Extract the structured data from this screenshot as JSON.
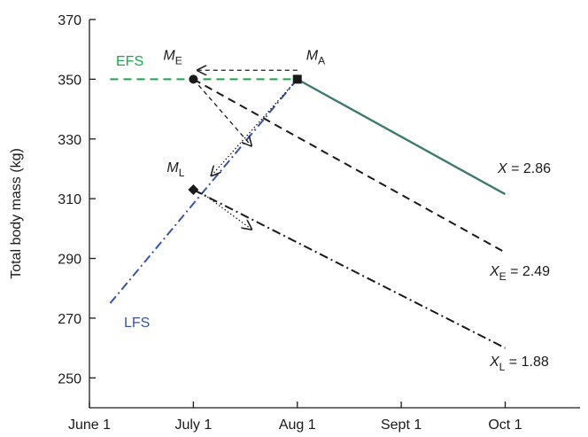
{
  "chart_data": {
    "type": "line",
    "title": "",
    "xlabel": "",
    "ylabel": "Total body mass (kg)",
    "x_ticks": [
      "June 1",
      "July 1",
      "Aug 1",
      "Sept 1",
      "Oct 1"
    ],
    "y_ticks": [
      250,
      270,
      290,
      310,
      330,
      350,
      370
    ],
    "ylim": [
      240,
      370
    ],
    "xlim": [
      0,
      4.72
    ],
    "grid": false,
    "colors": {
      "efs": "#18a84a",
      "lfs": "#3a53a4",
      "black": "#1a1a1a",
      "overlap": "#3f7a6e"
    },
    "series": [
      {
        "name": "EFS",
        "style": "dashed",
        "color": "#18a84a",
        "x": [
          0.2,
          2
        ],
        "y": [
          350,
          350
        ]
      },
      {
        "name": "LFS",
        "style": "dash-dot",
        "color": "#3a53a4",
        "x": [
          0.2,
          2
        ],
        "y": [
          275,
          350
        ]
      },
      {
        "style": "solid",
        "color": "#3f7a6e",
        "x": [
          2,
          4
        ],
        "y": [
          350,
          311.5
        ]
      },
      {
        "style": "dashed",
        "color": "#1a1a1a",
        "x": [
          1,
          4
        ],
        "y": [
          350,
          292
        ]
      },
      {
        "style": "dash-dot",
        "color": "#1a1a1a",
        "x": [
          1,
          4
        ],
        "y": [
          313,
          260
        ]
      }
    ],
    "points": [
      {
        "label": "M",
        "sub": "E",
        "x": 1,
        "y": 350,
        "marker": "circle"
      },
      {
        "label": "M",
        "sub": "A",
        "x": 2,
        "y": 350,
        "marker": "square"
      },
      {
        "label": "M",
        "sub": "L",
        "x": 1,
        "y": 313,
        "marker": "diamond"
      }
    ],
    "arrows": [
      {
        "style": "dashed",
        "from": [
          2,
          353
        ],
        "to": [
          1.05,
          353
        ]
      },
      {
        "style": "dashed",
        "from": [
          1.05,
          348
        ],
        "to": [
          1.55,
          328
        ]
      },
      {
        "style": "dotted",
        "from": [
          2,
          350
        ],
        "to": [
          1.18,
          318
        ]
      },
      {
        "style": "dotted",
        "from": [
          1.08,
          312
        ],
        "to": [
          1.55,
          300
        ]
      }
    ],
    "annotations": {
      "efs": "EFS",
      "lfs": "LFS",
      "x_main": {
        "var": "X",
        "sub": "",
        "text": " = 2.86"
      },
      "x_e": {
        "var": "X",
        "sub": "E",
        "text": " = 2.49"
      },
      "x_l": {
        "var": "X",
        "sub": "L",
        "text": " = 1.88"
      }
    }
  }
}
